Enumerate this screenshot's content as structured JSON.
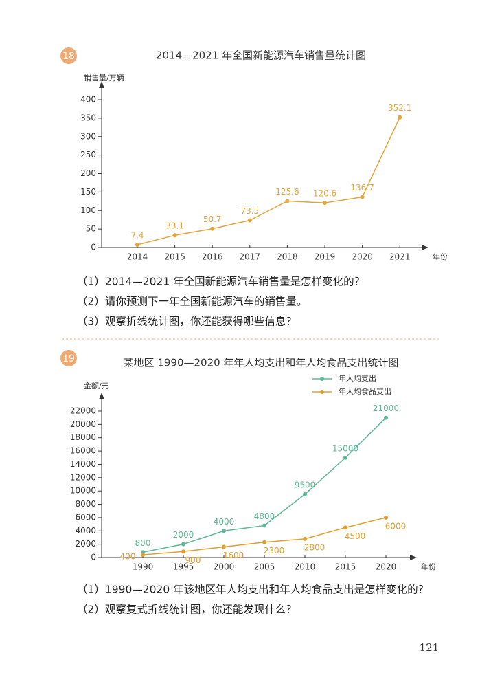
{
  "chart_data": [
    {
      "type": "line",
      "title": "2014—2021 年全国新能源汽车销售量统计图",
      "y_label": "销售量/万辆",
      "x_label": "年份",
      "categories": [
        "2014",
        "2015",
        "2016",
        "2017",
        "2018",
        "2019",
        "2020",
        "2021"
      ],
      "values": [
        7.4,
        33.1,
        50.7,
        73.5,
        125.6,
        120.6,
        136.7,
        352.1
      ],
      "color": "#e2a63c",
      "ylim": [
        0,
        400
      ],
      "yticks": [
        0,
        50,
        100,
        150,
        200,
        250,
        300,
        350,
        400
      ]
    },
    {
      "type": "line",
      "title": "某地区 1990—2020 年年人均支出和年人均食品支出统计图",
      "y_label": "金额/元",
      "x_label": "年份",
      "categories": [
        "1990",
        "1995",
        "2000",
        "2005",
        "2010",
        "2015",
        "2020"
      ],
      "series": [
        {
          "name": "年人均支出",
          "color": "#5fb896",
          "values": [
            800,
            2000,
            4000,
            4800,
            9500,
            15000,
            21000
          ]
        },
        {
          "name": "年人均食品支出",
          "color": "#e0a030",
          "values": [
            400,
            900,
            1600,
            2300,
            2800,
            4500,
            6000
          ]
        }
      ],
      "ylim": [
        0,
        22000
      ],
      "yticks": [
        0,
        2000,
        4000,
        6000,
        8000,
        10000,
        12000,
        14000,
        16000,
        18000,
        20000,
        22000
      ]
    }
  ],
  "problems": [
    {
      "number": "18",
      "questions": [
        "（1）2014—2021 年全国新能源汽车销售量是怎样变化的？",
        "（2）请你预测下一年全国新能源汽车的销售量。",
        "（3）观察折线统计图，你还能获得哪些信息？"
      ]
    },
    {
      "number": "19",
      "questions": [
        "（1）1990—2020 年该地区年人均支出和年人均食品支出是怎样变化的？",
        "（2）观察复式折线统计图，你还能发现什么？"
      ]
    }
  ],
  "page_number": "121"
}
